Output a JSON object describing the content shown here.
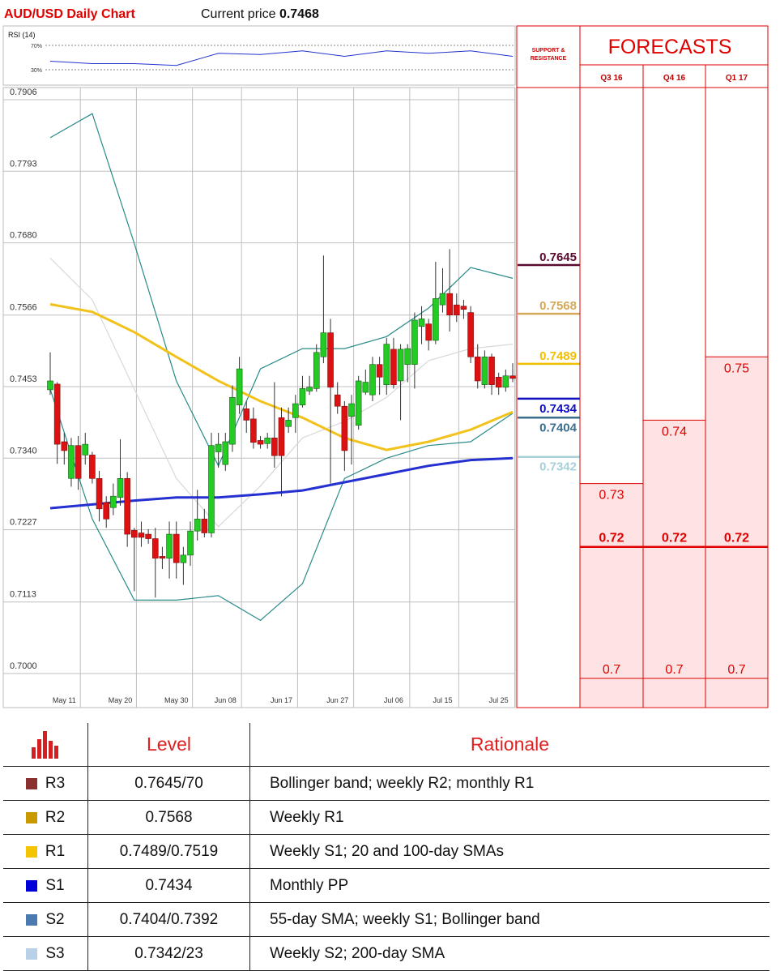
{
  "header": {
    "title": "AUD/USD Daily Chart",
    "price_label": "Current price",
    "price": 0.7468
  },
  "chart_data": [
    {
      "type": "line",
      "title": "RSI (14)",
      "x": [
        0,
        6,
        12,
        18,
        24,
        30,
        36,
        42,
        48,
        54,
        60,
        66
      ],
      "values": [
        44,
        40,
        40,
        37,
        57,
        55,
        61,
        52,
        61,
        57,
        61,
        52
      ],
      "color": "#2233cc",
      "xlim": [
        0,
        66
      ],
      "ylim": [
        0,
        100
      ],
      "yticks": [
        {
          "value": 30,
          "label": "30%"
        },
        {
          "value": 70,
          "label": "70%"
        }
      ]
    },
    {
      "type": "candlestick",
      "categories": [
        null,
        null,
        "May 11",
        null,
        null,
        null,
        null,
        null,
        null,
        null,
        "May 20",
        null,
        null,
        null,
        null,
        null,
        null,
        null,
        "May 30",
        null,
        null,
        null,
        null,
        null,
        null,
        "Jun 08",
        null,
        null,
        null,
        null,
        null,
        null,
        null,
        "Jun 17",
        null,
        null,
        null,
        null,
        null,
        null,
        null,
        "Jun 27",
        null,
        null,
        null,
        null,
        null,
        null,
        null,
        "Jul 06",
        null,
        null,
        null,
        null,
        null,
        null,
        "Jul 15",
        null,
        null,
        null,
        null,
        null,
        null,
        null,
        "Jul 25",
        null,
        null
      ],
      "open": [
        0.7448,
        0.7457,
        0.7366,
        0.7308,
        0.736,
        0.7345,
        0.7345,
        0.7308,
        0.727,
        0.7262,
        0.7278,
        0.7308,
        0.7226,
        0.7222,
        0.722,
        0.7213,
        0.7185,
        0.7182,
        0.722,
        0.7175,
        0.7187,
        0.7225,
        0.7244,
        0.7222,
        0.735,
        0.733,
        0.7362,
        0.7424,
        0.7418,
        0.7402,
        0.7368,
        0.7363,
        0.7372,
        0.7404,
        0.739,
        0.7404,
        0.7424,
        0.7446,
        0.745,
        0.75,
        0.7538,
        0.744,
        0.7422,
        0.7406,
        0.7392,
        0.7444,
        0.744,
        0.7488,
        0.7456,
        0.7512,
        0.7462,
        0.7488,
        0.7488,
        0.7548,
        0.7552,
        0.7526,
        0.7582,
        0.76,
        0.7582,
        0.758,
        0.757,
        0.75,
        0.7456,
        0.75,
        0.7468,
        0.7452,
        0.747
      ],
      "high": [
        0.7507,
        0.746,
        0.738,
        0.7372,
        0.7375,
        0.738,
        0.735,
        0.732,
        0.728,
        0.73,
        0.737,
        0.7318,
        0.723,
        0.724,
        0.7228,
        0.723,
        0.72,
        0.724,
        0.724,
        0.72,
        0.724,
        0.729,
        0.726,
        0.738,
        0.738,
        0.738,
        0.7455,
        0.75,
        0.743,
        0.742,
        0.7375,
        0.738,
        0.746,
        0.742,
        0.742,
        0.744,
        0.747,
        0.747,
        0.752,
        0.766,
        0.756,
        0.746,
        0.743,
        0.744,
        0.747,
        0.748,
        0.75,
        0.75,
        0.753,
        0.753,
        0.752,
        0.752,
        0.757,
        0.758,
        0.756,
        0.765,
        0.764,
        0.767,
        0.76,
        0.759,
        0.758,
        0.752,
        0.751,
        0.7505,
        0.7475,
        0.748,
        0.749
      ],
      "low": [
        0.744,
        0.7331,
        0.733,
        0.7295,
        0.729,
        0.733,
        0.73,
        0.724,
        0.723,
        0.725,
        0.7265,
        0.72,
        0.713,
        0.72,
        0.7205,
        0.712,
        0.7165,
        0.715,
        0.715,
        0.714,
        0.717,
        0.721,
        0.7215,
        0.7215,
        0.7325,
        0.732,
        0.735,
        0.741,
        0.738,
        0.7355,
        0.7355,
        0.7355,
        0.7325,
        0.728,
        0.738,
        0.738,
        0.742,
        0.744,
        0.7445,
        0.749,
        0.73,
        0.741,
        0.732,
        0.733,
        0.7385,
        0.744,
        0.743,
        0.744,
        0.744,
        0.745,
        0.74,
        0.746,
        0.745,
        0.752,
        0.751,
        0.752,
        0.757,
        0.754,
        0.7555,
        0.756,
        0.749,
        0.745,
        0.745,
        0.744,
        0.744,
        0.7445,
        0.746
      ],
      "close": [
        0.7462,
        0.7362,
        0.7352,
        0.736,
        0.7308,
        0.7362,
        0.7308,
        0.726,
        0.7244,
        0.728,
        0.7308,
        0.722,
        0.7215,
        0.7215,
        0.7213,
        0.7182,
        0.7182,
        0.722,
        0.7175,
        0.7187,
        0.7225,
        0.7244,
        0.7222,
        0.736,
        0.7362,
        0.7366,
        0.7436,
        0.7481,
        0.74,
        0.7365,
        0.7362,
        0.7372,
        0.7344,
        0.7344,
        0.74,
        0.7426,
        0.745,
        0.7452,
        0.7507,
        0.7538,
        0.7452,
        0.7422,
        0.7352,
        0.7426,
        0.7462,
        0.746,
        0.7488,
        0.7468,
        0.752,
        0.7456,
        0.7512,
        0.7513,
        0.7558,
        0.756,
        0.7526,
        0.7592,
        0.76,
        0.7566,
        0.7566,
        0.7575,
        0.75,
        0.7462,
        0.75,
        0.7456,
        0.7452,
        0.747,
        0.7466
      ],
      "up_color": "#22cc22",
      "down_color": "#dd1111",
      "ylim": [
        0.7,
        0.7906
      ],
      "yticks": [
        {
          "value": 0.7,
          "label": "0.7000"
        },
        0.7113,
        0.7227,
        {
          "value": 0.734,
          "label": "0.7340"
        },
        0.7453,
        0.7566,
        {
          "value": 0.768,
          "label": "0.7680"
        },
        0.7793,
        0.7906
      ],
      "grid": true,
      "overlays": [
        {
          "color": "#2a8a8a",
          "x": [
            0,
            6,
            12,
            18,
            24,
            30,
            36,
            42,
            48,
            54,
            60,
            66
          ],
          "values": [
            0.7846,
            0.7884,
            0.7679,
            0.7462,
            0.7328,
            0.7481,
            0.7513,
            0.7513,
            0.7532,
            0.7577,
            0.7641,
            0.7624
          ]
        },
        {
          "color": "#2a8a8a",
          "x": [
            0,
            6,
            12,
            18,
            24,
            30,
            36,
            42,
            48,
            54,
            60,
            66
          ],
          "values": [
            0.7449,
            0.7244,
            0.7116,
            0.7116,
            0.7123,
            0.7084,
            0.7142,
            0.7308,
            0.734,
            0.736,
            0.7366,
            0.7411
          ]
        },
        {
          "color": "#d8d8d8",
          "x": [
            0,
            6,
            12,
            18,
            24,
            30,
            36,
            42,
            48,
            54,
            60,
            66
          ],
          "values": [
            0.7656,
            0.759,
            0.7449,
            0.7308,
            0.7232,
            0.7296,
            0.7372,
            0.7398,
            0.7436,
            0.7494,
            0.7513,
            0.752
          ]
        },
        {
          "color": "#f2c21a",
          "x": [
            0,
            6,
            12,
            18,
            24,
            30,
            36,
            42,
            48,
            54,
            60,
            66
          ],
          "values": [
            0.7583,
            0.7571,
            0.7539,
            0.75,
            0.7462,
            0.743,
            0.7404,
            0.7372,
            0.7353,
            0.7366,
            0.7385,
            0.7413
          ]
        },
        {
          "color": "#2530d0",
          "x": [
            0,
            6,
            12,
            18,
            24,
            30,
            36,
            42,
            48,
            54,
            60,
            66
          ],
          "values": [
            0.7261,
            0.7267,
            0.7273,
            0.7278,
            0.7278,
            0.7283,
            0.7289,
            0.7302,
            0.7315,
            0.7328,
            0.7337,
            0.734
          ]
        }
      ],
      "support_resistance": {
        "title": "SUPPORT & RESISTANCE",
        "values": [
          0.7645,
          0.7568,
          0.7489,
          0.7434,
          0.7404,
          0.7342
        ],
        "colors": [
          "#5a0a2e",
          "#d4a85a",
          "#f0c000",
          "#1010c0",
          "#3a6e8c",
          "#a8d0d8"
        ]
      },
      "forecasts": {
        "title": "FORECASTS",
        "quarters": [
          "Q3 16",
          "Q4 16",
          "Q1 17"
        ],
        "high": [
          0.73,
          0.74,
          0.75
        ],
        "mid": [
          0.72,
          0.72,
          0.72
        ],
        "low": [
          0.7,
          0.7,
          0.7
        ]
      }
    }
  ],
  "table": {
    "header": [
      "Level",
      "Rationale"
    ],
    "rows": [
      [
        "R3",
        "0.7645/70",
        "Bollinger band; weekly R2; monthly R1"
      ],
      [
        "R2",
        "0.7568",
        "Weekly R1"
      ],
      [
        "R1",
        "0.7489/0.7519",
        "Weekly S1; 20 and 100-day SMAs"
      ],
      [
        "S1",
        "0.7434",
        "Monthly PP"
      ],
      [
        "S2",
        "0.7404/0.7392",
        "55-day SMA; weekly S1; Bollinger band"
      ],
      [
        "S3",
        "0.7342/23",
        "Weekly S2; 200-day SMA"
      ]
    ],
    "colors": [
      "#8b3030",
      "#c89a00",
      "#f5c400",
      "#0000d8",
      "#4a7ab0",
      "#b8d0e8"
    ]
  }
}
